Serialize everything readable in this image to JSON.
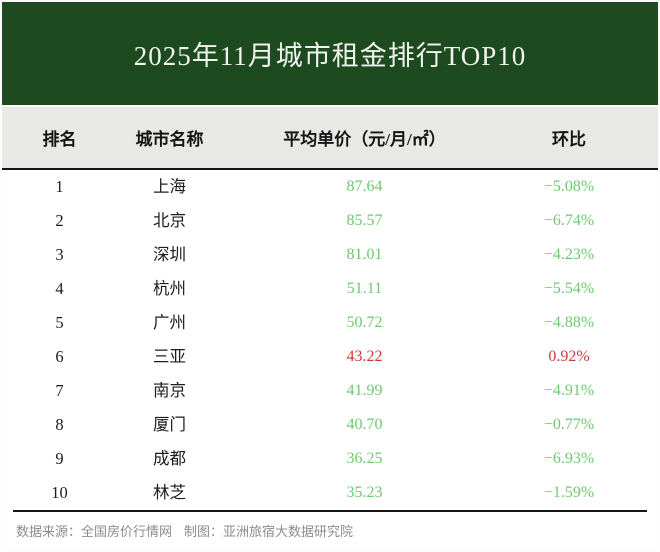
{
  "banner": {
    "title": "2025年11月城市租金排行TOP10"
  },
  "chart_data": {
    "type": "table",
    "title": "2025年11月城市租金排行TOP10",
    "columns": [
      "排名",
      "城市名称",
      "平均单价（元/月/㎡）",
      "环比"
    ],
    "rows": [
      {
        "rank": "1",
        "city": "上海",
        "price": "87.64",
        "change": "−5.08%",
        "trend": "down"
      },
      {
        "rank": "2",
        "city": "北京",
        "price": "85.57",
        "change": "−6.74%",
        "trend": "down"
      },
      {
        "rank": "3",
        "city": "深圳",
        "price": "81.01",
        "change": "−4.23%",
        "trend": "down"
      },
      {
        "rank": "4",
        "city": "杭州",
        "price": "51.11",
        "change": "−5.54%",
        "trend": "down"
      },
      {
        "rank": "5",
        "city": "广州",
        "price": "50.72",
        "change": "−4.88%",
        "trend": "down"
      },
      {
        "rank": "6",
        "city": "三亚",
        "price": "43.22",
        "change": "0.92%",
        "trend": "up"
      },
      {
        "rank": "7",
        "city": "南京",
        "price": "41.99",
        "change": "−4.91%",
        "trend": "down"
      },
      {
        "rank": "8",
        "city": "厦门",
        "price": "40.70",
        "change": "−0.77%",
        "trend": "down"
      },
      {
        "rank": "9",
        "city": "成都",
        "price": "36.25",
        "change": "−6.93%",
        "trend": "down"
      },
      {
        "rank": "10",
        "city": "林芝",
        "price": "35.23",
        "change": "−1.59%",
        "trend": "down"
      }
    ],
    "layout": {
      "grid": false,
      "value_unit": "元/月/㎡",
      "period": "2025-11"
    }
  },
  "footer": {
    "source": "数据来源：全国房价行情网",
    "credit": "制图：亚洲旅宿大数据研究院"
  },
  "colors": {
    "banner_green": "#1e4a20",
    "band_gray": "#e8e8e6",
    "value_green": "#6fc86f",
    "value_red": "#c93a35",
    "footer_gray": "#8c8c8c"
  }
}
